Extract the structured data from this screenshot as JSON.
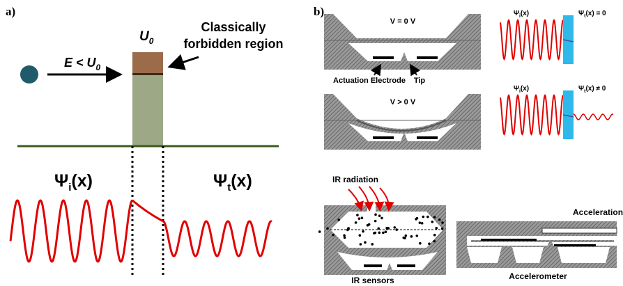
{
  "panel_a": {
    "label": "a)",
    "barrier": {
      "base": "U",
      "sub": "0"
    },
    "forbidden_label": [
      "Classically",
      "forbidden region"
    ],
    "energy": {
      "base": "E < U",
      "sub": "0"
    },
    "psi_incident": {
      "base": "Ψ",
      "sub": "i",
      "rest": "(x)"
    },
    "psi_transmitted": {
      "base": "Ψ",
      "sub": "t",
      "rest": "(x)"
    }
  },
  "panel_b": {
    "label": "b)",
    "device_off": {
      "voltage": "V = 0 V",
      "electrode_label": "Actuation Electrode",
      "tip_label": "Tip"
    },
    "device_on": {
      "voltage": "V > 0 V"
    },
    "wave_off": {
      "incident": {
        "base": "Ψ",
        "sub": "i",
        "rest": "(x)"
      },
      "transmitted": {
        "base": "Ψ",
        "sub": "t",
        "rest": "(x) = 0"
      }
    },
    "wave_on": {
      "incident": {
        "base": "Ψ",
        "sub": "i",
        "rest": "(x)"
      },
      "transmitted": {
        "base": "Ψ",
        "sub": "t",
        "rest": "(x) ≠ 0"
      }
    },
    "ir": {
      "radiation": "IR radiation",
      "caption": "IR sensors"
    },
    "accel": {
      "caption": "Accelerometer",
      "force": "Acceleration"
    }
  }
}
